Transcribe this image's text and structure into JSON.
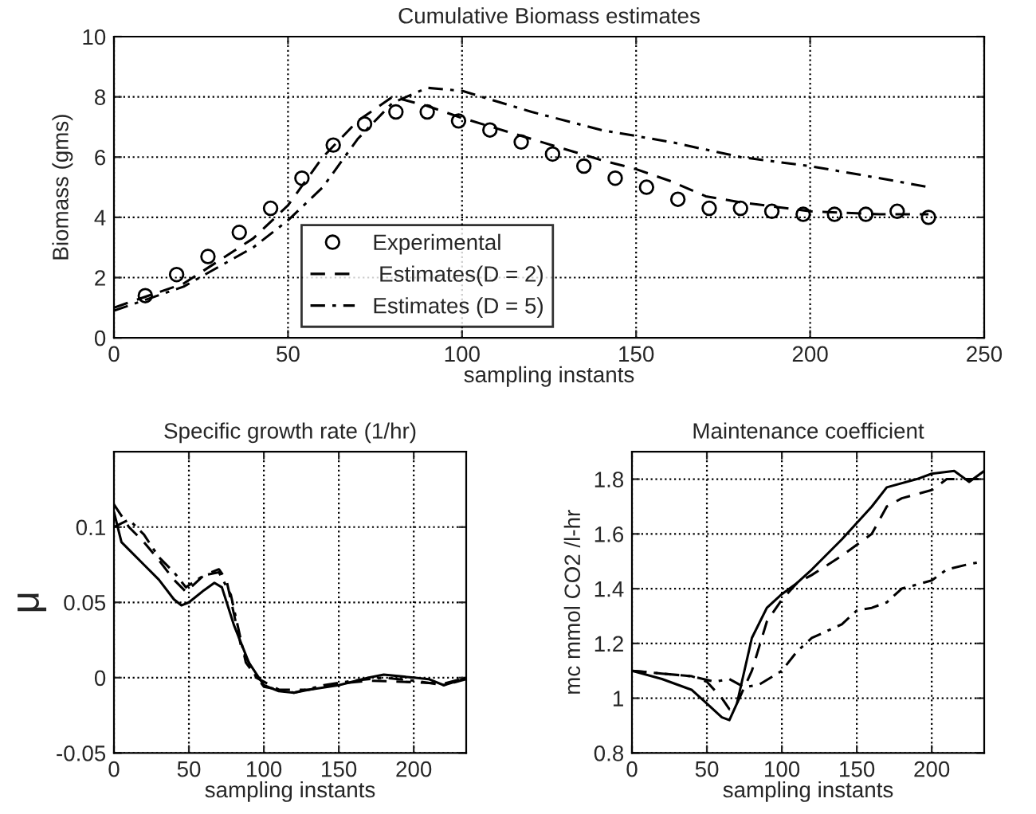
{
  "chart_data": [
    {
      "type": "line",
      "title": "Cumulative Biomass estimates",
      "xlabel": "sampling instants",
      "ylabel": "Biomass (gms)",
      "xlim": [
        0,
        250
      ],
      "ylim": [
        0,
        10
      ],
      "xticks": [
        0,
        50,
        100,
        150,
        200,
        250
      ],
      "yticks": [
        0,
        2,
        4,
        6,
        8,
        10
      ],
      "grid": true,
      "legend": "bottom",
      "series": [
        {
          "name": "Experimental",
          "type": "scatter",
          "marker": "circle",
          "color": "#000000",
          "x": [
            9,
            18,
            27,
            36,
            45,
            54,
            63,
            72,
            81,
            90,
            99,
            108,
            117,
            126,
            135,
            144,
            153,
            162,
            171,
            180,
            189,
            198,
            207,
            216,
            225,
            234
          ],
          "values": [
            1.4,
            2.1,
            2.7,
            3.5,
            4.3,
            5.3,
            6.4,
            7.1,
            7.5,
            7.5,
            7.2,
            6.9,
            6.5,
            6.1,
            5.7,
            5.3,
            5.0,
            4.6,
            4.3,
            4.3,
            4.2,
            4.1,
            4.1,
            4.1,
            4.2,
            4.0
          ]
        },
        {
          "name": " Estimates(D = 2)",
          "line_style": "dashed",
          "color": "#000000",
          "x": [
            0,
            20,
            40,
            50,
            60,
            70,
            80,
            90,
            100,
            120,
            140,
            150,
            160,
            170,
            180,
            200,
            220,
            234
          ],
          "values": [
            1.0,
            1.8,
            3.3,
            4.4,
            6.0,
            7.2,
            8.0,
            7.7,
            7.3,
            6.6,
            5.9,
            5.6,
            5.2,
            4.7,
            4.5,
            4.2,
            4.1,
            4.1
          ]
        },
        {
          "name": "Estimates (D = 5)",
          "line_style": "dashdot",
          "color": "#000000",
          "x": [
            0,
            20,
            40,
            50,
            60,
            70,
            80,
            90,
            100,
            120,
            140,
            160,
            180,
            200,
            220,
            234
          ],
          "values": [
            0.9,
            1.7,
            3.0,
            3.9,
            5.0,
            6.6,
            7.8,
            8.3,
            8.2,
            7.5,
            6.9,
            6.5,
            6.0,
            5.7,
            5.3,
            5.0
          ]
        }
      ]
    },
    {
      "type": "line",
      "title": "Specific growth rate (1/hr)",
      "xlabel": "sampling instants",
      "ylabel": "μ",
      "xlim": [
        0,
        235
      ],
      "ylim": [
        -0.05,
        0.15
      ],
      "xticks": [
        0,
        50,
        100,
        150,
        200
      ],
      "yticks": [
        -0.05,
        0,
        0.05,
        0.1
      ],
      "grid": true,
      "series": [
        {
          "line_style": "solid",
          "color": "#000000",
          "x": [
            0,
            5,
            10,
            20,
            30,
            40,
            45,
            50,
            60,
            67,
            72,
            80,
            90,
            100,
            110,
            120,
            130,
            150,
            170,
            180,
            200,
            210,
            220,
            230,
            235
          ],
          "values": [
            0.11,
            0.09,
            0.085,
            0.075,
            0.065,
            0.052,
            0.048,
            0.05,
            0.058,
            0.063,
            0.06,
            0.035,
            0.01,
            -0.005,
            -0.009,
            -0.01,
            -0.008,
            -0.005,
            0.0,
            0.002,
            0.0,
            -0.001,
            -0.005,
            -0.002,
            0.0
          ]
        },
        {
          "line_style": "dashed",
          "color": "#000000",
          "x": [
            0,
            10,
            20,
            30,
            40,
            48,
            60,
            70,
            75,
            85,
            95,
            110,
            130,
            150,
            170,
            200,
            220,
            235
          ],
          "values": [
            0.115,
            0.1,
            0.09,
            0.078,
            0.065,
            0.057,
            0.068,
            0.072,
            0.065,
            0.02,
            0.0,
            -0.008,
            -0.008,
            -0.004,
            -0.002,
            -0.003,
            -0.004,
            0.0
          ]
        },
        {
          "line_style": "dashdot",
          "color": "#000000",
          "x": [
            0,
            10,
            20,
            30,
            40,
            48,
            60,
            70,
            78,
            88,
            100,
            120,
            140,
            160,
            180,
            200,
            220,
            235
          ],
          "values": [
            0.1,
            0.105,
            0.095,
            0.08,
            0.07,
            0.06,
            0.068,
            0.07,
            0.055,
            0.01,
            -0.006,
            -0.01,
            -0.005,
            -0.002,
            0.0,
            -0.002,
            -0.005,
            -0.001
          ]
        }
      ]
    },
    {
      "type": "line",
      "title": "Maintenance coefficient",
      "xlabel": "sampling instants",
      "ylabel": "mc mmol CO2 /l-hr",
      "xlim": [
        0,
        235
      ],
      "ylim": [
        0.8,
        1.9
      ],
      "xticks": [
        0,
        50,
        100,
        150,
        200
      ],
      "yticks": [
        0.8,
        1,
        1.2,
        1.4,
        1.6,
        1.8
      ],
      "grid": true,
      "series": [
        {
          "line_style": "solid",
          "color": "#000000",
          "x": [
            0,
            20,
            40,
            50,
            60,
            65,
            70,
            75,
            80,
            90,
            100,
            110,
            120,
            140,
            160,
            170,
            190,
            200,
            215,
            225,
            235
          ],
          "values": [
            1.1,
            1.07,
            1.03,
            0.98,
            0.93,
            0.92,
            0.98,
            1.1,
            1.22,
            1.33,
            1.38,
            1.42,
            1.47,
            1.58,
            1.7,
            1.77,
            1.8,
            1.82,
            1.83,
            1.79,
            1.83
          ]
        },
        {
          "line_style": "dashed",
          "color": "#000000",
          "x": [
            0,
            20,
            40,
            50,
            60,
            65,
            70,
            80,
            90,
            100,
            110,
            120,
            140,
            150,
            160,
            170,
            180,
            200,
            210,
            225,
            235
          ],
          "values": [
            1.1,
            1.09,
            1.08,
            1.06,
            1.0,
            0.96,
            0.98,
            1.1,
            1.28,
            1.36,
            1.42,
            1.45,
            1.52,
            1.56,
            1.6,
            1.7,
            1.73,
            1.76,
            1.8,
            1.8,
            1.8
          ]
        },
        {
          "line_style": "dashdot",
          "color": "#000000",
          "x": [
            0,
            20,
            40,
            55,
            65,
            75,
            85,
            100,
            110,
            120,
            140,
            150,
            160,
            170,
            180,
            200,
            210,
            225,
            235
          ],
          "values": [
            1.1,
            1.09,
            1.08,
            1.06,
            1.07,
            1.04,
            1.05,
            1.1,
            1.17,
            1.22,
            1.27,
            1.32,
            1.33,
            1.35,
            1.4,
            1.43,
            1.47,
            1.49,
            1.5
          ]
        }
      ]
    }
  ]
}
